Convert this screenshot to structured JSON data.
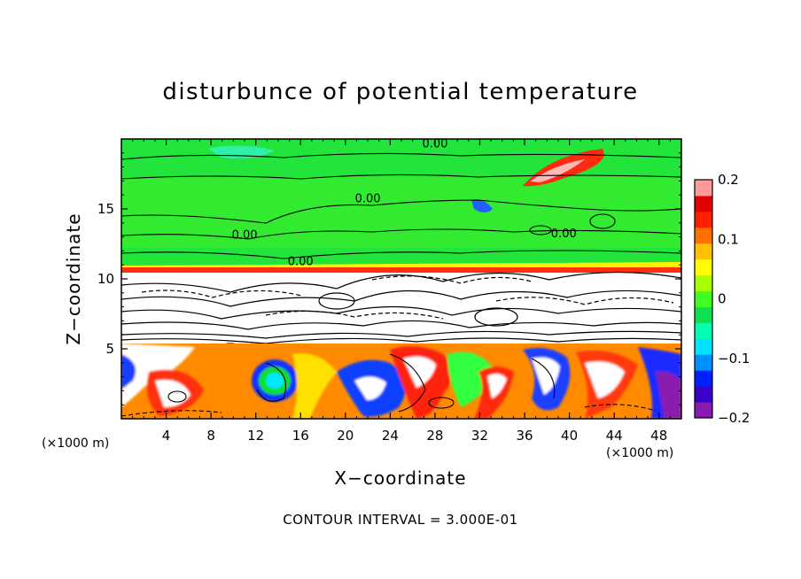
{
  "chart_data": {
    "type": "heatmap",
    "title": "disturbunce of potential temperature",
    "xlabel": "X−coordinate",
    "ylabel": "Z−coordinate",
    "x_unit": "(×1000 m)",
    "x_unit_right": "(×1000 m)",
    "xlim": [
      0,
      50
    ],
    "ylim": [
      0,
      20
    ],
    "xticks": [
      4,
      8,
      12,
      16,
      20,
      24,
      28,
      32,
      36,
      40,
      44,
      48
    ],
    "yticks": [
      5,
      10,
      15
    ],
    "colorbar": {
      "range": [
        -0.2,
        0.2
      ],
      "ticks": [
        {
          "value": 0.2,
          "label": "0.2"
        },
        {
          "value": 0.1,
          "label": "0.1"
        },
        {
          "value": 0,
          "label": "0"
        },
        {
          "value": -0.1,
          "label": "−0.1"
        },
        {
          "value": -0.2,
          "label": "−0.2"
        }
      ],
      "colors": [
        "#8a1ab0",
        "#3a00c8",
        "#0020ff",
        "#0090ff",
        "#00e0ff",
        "#00ffb0",
        "#10e050",
        "#40ff20",
        "#a8ff00",
        "#ffff00",
        "#ffc000",
        "#ff7000",
        "#ff2000",
        "#e00000",
        "#ff9a9a"
      ]
    },
    "contour_labels": [
      {
        "x": 22.0,
        "y": 15.8,
        "text": "0.00"
      },
      {
        "x": 11.0,
        "y": 13.2,
        "text": "0.00"
      },
      {
        "x": 16.0,
        "y": 11.3,
        "text": "0.00"
      },
      {
        "x": 28.0,
        "y": 19.7,
        "text": "0.00"
      },
      {
        "x": 39.5,
        "y": 13.3,
        "text": "0.00"
      }
    ],
    "contour_interval": "CONTOUR INTERVAL = 3.000E-01"
  }
}
